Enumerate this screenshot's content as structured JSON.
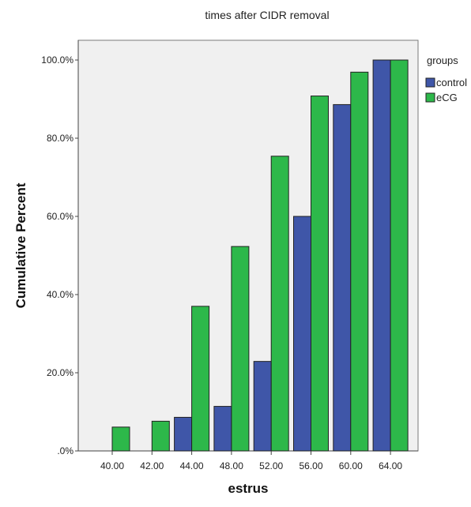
{
  "chart_data": {
    "type": "bar",
    "title": "times after CIDR removal",
    "xlabel": "estrus",
    "ylabel": "Cumulative Percent",
    "categories": [
      "40.00",
      "42.00",
      "44.00",
      "48.00",
      "52.00",
      "56.00",
      "60.00",
      "64.00"
    ],
    "series": [
      {
        "name": "control",
        "color": "#3f56a8",
        "values": [
          0,
          0,
          8.6,
          11.4,
          22.9,
          60.0,
          88.6,
          100.0
        ]
      },
      {
        "name": "eCG",
        "color": "#2db84a",
        "values": [
          6.1,
          7.6,
          37.0,
          52.3,
          75.4,
          90.8,
          96.9,
          100.0
        ]
      }
    ],
    "ylim": [
      0,
      100
    ],
    "yticks": [
      ".0%",
      "20.0%",
      "40.0%",
      "60.0%",
      "80.0%",
      "100.0%"
    ],
    "grid": false,
    "legend": {
      "title": "groups",
      "position": "right"
    },
    "plot_background": "#f0f0f0"
  }
}
